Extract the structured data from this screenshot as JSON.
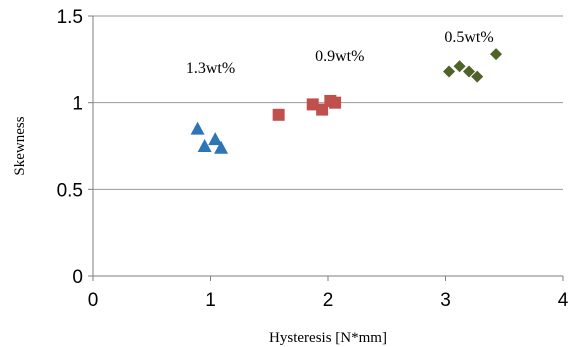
{
  "chart_data": {
    "type": "scatter",
    "xlabel": "Hysteresis [N*mm]",
    "ylabel": "Skewness",
    "xlim": [
      0,
      4
    ],
    "ylim": [
      0,
      1.5
    ],
    "x_ticks": [
      "0",
      "1",
      "2",
      "3",
      "4"
    ],
    "y_ticks": [
      "0",
      "0.5",
      "1",
      "1.5"
    ],
    "grid": "horizontal",
    "series": [
      {
        "label": "1.3wt%",
        "marker": "triangle",
        "color": "#2E75B6",
        "points": [
          [
            0.89,
            0.85
          ],
          [
            0.95,
            0.75
          ],
          [
            1.04,
            0.79
          ],
          [
            1.09,
            0.74
          ]
        ]
      },
      {
        "label": "0.9wt%",
        "marker": "square",
        "color": "#C0504D",
        "points": [
          [
            1.58,
            0.93
          ],
          [
            1.87,
            0.99
          ],
          [
            1.95,
            0.96
          ],
          [
            2.02,
            1.01
          ],
          [
            2.06,
            1.0
          ]
        ]
      },
      {
        "label": "0.5wt%",
        "marker": "diamond",
        "color": "#4F6228",
        "points": [
          [
            3.03,
            1.18
          ],
          [
            3.12,
            1.21
          ],
          [
            3.2,
            1.18
          ],
          [
            3.27,
            1.15
          ],
          [
            3.43,
            1.28
          ]
        ]
      }
    ],
    "annotations": [
      {
        "text": "1.3wt%",
        "x": 1.0,
        "y": 1.17
      },
      {
        "text": "0.9wt%",
        "x": 2.1,
        "y": 1.24
      },
      {
        "text": "0.5wt%",
        "x": 3.2,
        "y": 1.35
      }
    ]
  }
}
